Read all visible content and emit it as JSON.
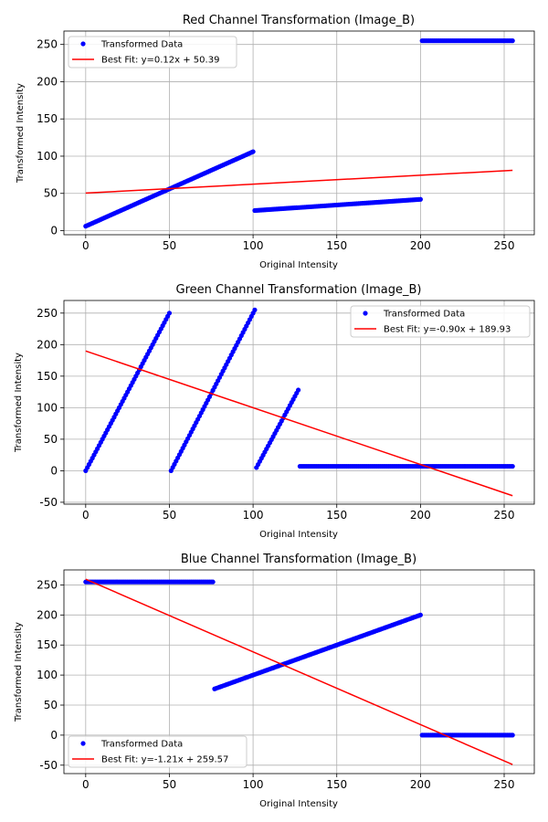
{
  "figure": {
    "background": "#ffffff"
  },
  "colors": {
    "scatter": "#0000ff",
    "fit": "#ff0000",
    "grid": "#b0b0b0"
  },
  "chart_data": [
    {
      "type": "scatter",
      "title": "Red Channel Transformation (Image_B)",
      "xlabel": "Original Intensity",
      "ylabel": "Transformed Intensity",
      "xlim": [
        -13,
        268
      ],
      "ylim": [
        -5.5,
        268
      ],
      "xticks": [
        0,
        50,
        100,
        150,
        200,
        250
      ],
      "yticks": [
        0,
        50,
        100,
        150,
        200,
        250
      ],
      "grid": true,
      "legend_position": "top-left",
      "legend": [
        "Transformed Data",
        "Best Fit: y=0.12x + 50.39"
      ],
      "segments": [
        {
          "x_start": 0,
          "x_end": 100,
          "y_start": 6,
          "y_end": 106
        },
        {
          "x_start": 101,
          "x_end": 200,
          "y_start": 27,
          "y_end": 42
        },
        {
          "x_start": 201,
          "x_end": 255,
          "y_start": 255,
          "y_end": 255
        }
      ],
      "fit": {
        "slope": 0.12,
        "intercept": 50.39,
        "x_range": [
          0,
          255
        ]
      }
    },
    {
      "type": "scatter",
      "title": "Green Channel Transformation (Image_B)",
      "xlabel": "Original Intensity",
      "ylabel": "Transformed Intensity",
      "xlim": [
        -13,
        268
      ],
      "ylim": [
        -53,
        270
      ],
      "xticks": [
        0,
        50,
        100,
        150,
        200,
        250
      ],
      "yticks": [
        -50,
        0,
        50,
        100,
        150,
        200,
        250
      ],
      "grid": true,
      "legend_position": "top-right",
      "legend": [
        "Transformed Data",
        "Best Fit: y=-0.90x + 189.93"
      ],
      "segments": [
        {
          "x_start": 0,
          "x_end": 50,
          "y_start": 0,
          "y_end": 250
        },
        {
          "x_start": 51,
          "x_end": 101,
          "y_start": 0,
          "y_end": 255
        },
        {
          "x_start": 102,
          "x_end": 127,
          "y_start": 5,
          "y_end": 128
        },
        {
          "x_start": 128,
          "x_end": 255,
          "y_start": 7,
          "y_end": 7
        }
      ],
      "fit": {
        "slope": -0.9,
        "intercept": 189.93,
        "x_range": [
          0,
          255
        ]
      }
    },
    {
      "type": "scatter",
      "title": "Blue Channel Transformation (Image_B)",
      "xlabel": "Original Intensity",
      "ylabel": "Transformed Intensity",
      "xlim": [
        -13,
        268
      ],
      "ylim": [
        -64,
        275
      ],
      "xticks": [
        0,
        50,
        100,
        150,
        200,
        250
      ],
      "yticks": [
        -50,
        0,
        50,
        100,
        150,
        200,
        250
      ],
      "grid": true,
      "legend_position": "bottom-left",
      "legend": [
        "Transformed Data",
        "Best Fit: y=-1.21x + 259.57"
      ],
      "segments": [
        {
          "x_start": 0,
          "x_end": 76,
          "y_start": 255,
          "y_end": 255
        },
        {
          "x_start": 77,
          "x_end": 200,
          "y_start": 77,
          "y_end": 200
        },
        {
          "x_start": 201,
          "x_end": 255,
          "y_start": 0,
          "y_end": 0
        }
      ],
      "fit": {
        "slope": -1.21,
        "intercept": 259.57,
        "x_range": [
          0,
          255
        ]
      }
    }
  ]
}
